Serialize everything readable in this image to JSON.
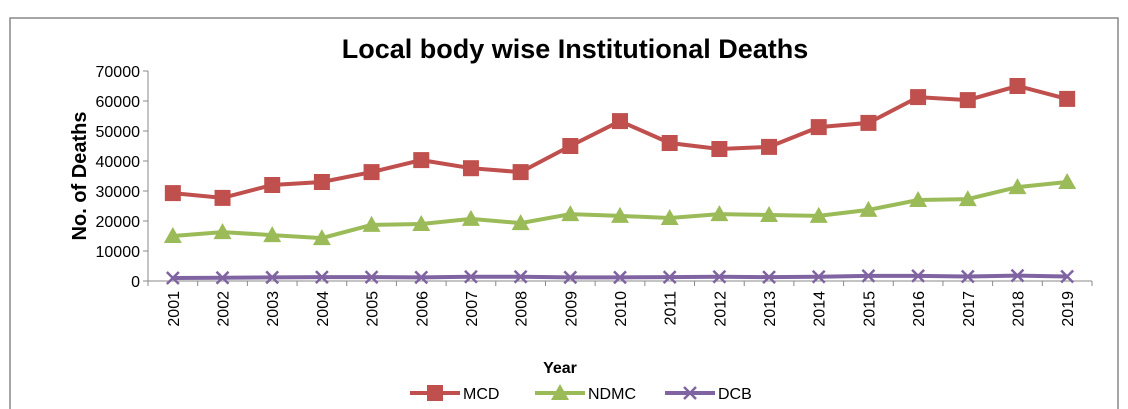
{
  "chart_data": {
    "type": "line",
    "title": "Local body wise Institutional Deaths",
    "x_label": "Year",
    "y_label": "No. of Deaths",
    "categories": [
      "2001",
      "2002",
      "2003",
      "2004",
      "2005",
      "2006",
      "2007",
      "2008",
      "2009",
      "2010",
      "2011",
      "2012",
      "2013",
      "2014",
      "2015",
      "2016",
      "2017",
      "2018",
      "2019"
    ],
    "series": [
      {
        "name": "MCD",
        "color": "#c0504d",
        "marker": "square",
        "values": [
          29300,
          27700,
          32000,
          33000,
          36300,
          40300,
          37600,
          36300,
          45000,
          53300,
          46000,
          44000,
          44700,
          51300,
          52700,
          61300,
          60300,
          65000,
          60700
        ]
      },
      {
        "name": "NDMC",
        "color": "#9bbb59",
        "marker": "triangle",
        "values": [
          15000,
          16300,
          15300,
          14300,
          18700,
          19000,
          20700,
          19300,
          22300,
          21700,
          21000,
          22300,
          22000,
          21700,
          23700,
          27000,
          27300,
          31300,
          33000
        ]
      },
      {
        "name": "DCB",
        "color": "#8064a2",
        "marker": "x",
        "values": [
          1000,
          1100,
          1200,
          1300,
          1300,
          1200,
          1400,
          1400,
          1200,
          1200,
          1300,
          1400,
          1300,
          1400,
          1700,
          1700,
          1500,
          1800,
          1500
        ]
      }
    ],
    "ylim": [
      0,
      70000
    ],
    "yticks": [
      0,
      10000,
      20000,
      30000,
      40000,
      50000,
      60000,
      70000
    ],
    "legend": "bottom"
  }
}
